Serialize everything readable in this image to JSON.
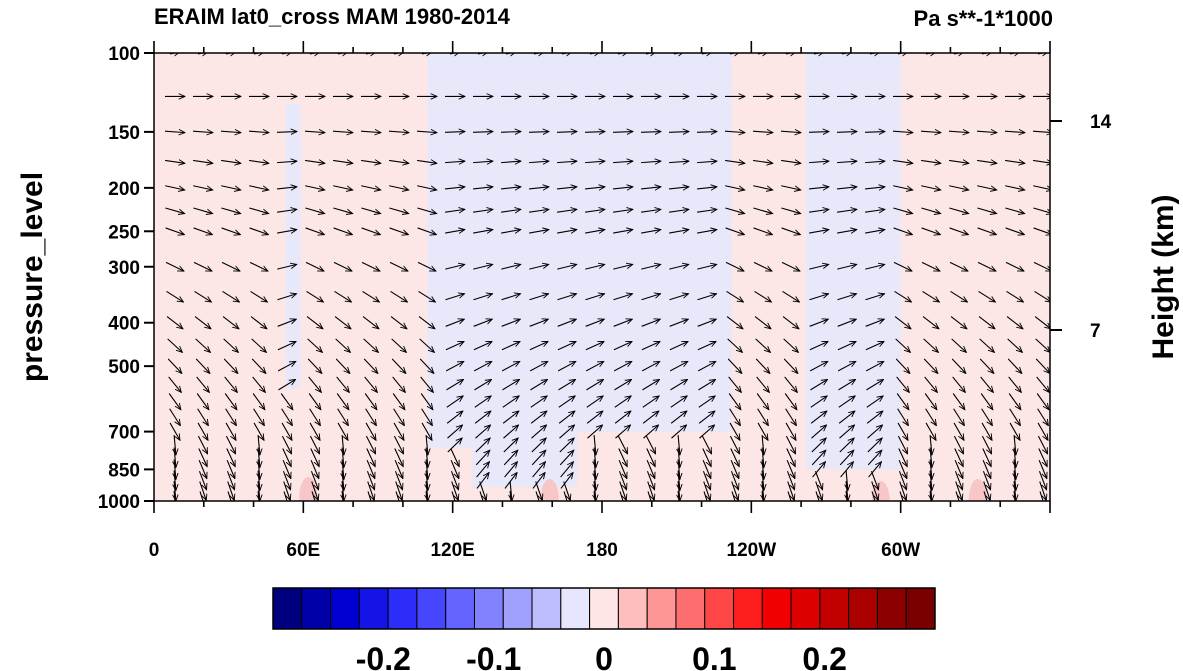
{
  "chart_data": {
    "type": "heatmap",
    "title": "ERAIM lat0_cross MAM 1980-2014",
    "units": "Pa s**-1*1000",
    "ylabel": "pressure_level",
    "ylabel_right": "Height (km)",
    "xlabel": "",
    "x_ticks": [
      {
        "lon": 0,
        "label": "0"
      },
      {
        "lon": 60,
        "label": "60E"
      },
      {
        "lon": 120,
        "label": "120E"
      },
      {
        "lon": 180,
        "label": "180"
      },
      {
        "lon": 240,
        "label": "120W"
      },
      {
        "lon": 300,
        "label": "60W"
      }
    ],
    "xlim": [
      0,
      360
    ],
    "y_ticks": [
      100,
      150,
      200,
      250,
      300,
      400,
      500,
      700,
      850,
      1000
    ],
    "ylim": [
      1000,
      100
    ],
    "y_scale": "log",
    "height_ticks": [
      {
        "km": 14,
        "label": "14"
      },
      {
        "km": 7,
        "label": "7"
      }
    ],
    "colorbar": {
      "colors": [
        "#00007f",
        "#0000a8",
        "#0000d0",
        "#1414e6",
        "#2d2dfa",
        "#4646ff",
        "#6464ff",
        "#8282ff",
        "#a0a0ff",
        "#bebeff",
        "#e6e6ff",
        "#ffe6e6",
        "#ffbebe",
        "#ff9696",
        "#ff6e6e",
        "#ff4646",
        "#ff1e1e",
        "#f00000",
        "#dc0000",
        "#c30000",
        "#aa0000",
        "#8c0000",
        "#780000"
      ],
      "tick_labels": [
        "-0.2",
        "-0.1",
        "0",
        "0.1",
        "0.2"
      ],
      "tick_values": [
        -0.2,
        -0.1,
        0,
        0.1,
        0.2
      ],
      "range": [
        -0.3,
        0.3
      ]
    },
    "field_levels": {
      "weak_negative": "#e8e8fb",
      "weak_positive": "#fde6e6",
      "moderate_positive": "#f7c6c6"
    },
    "negative_regions": [
      {
        "lon": [
          53,
          59
        ],
        "p_top": 130,
        "p_bot": 560
      },
      {
        "lon": [
          110,
          128
        ],
        "p_top": 100,
        "p_bot": 760
      },
      {
        "lon": [
          128,
          170
        ],
        "p_top": 100,
        "p_bot": 930
      },
      {
        "lon": [
          170,
          232
        ],
        "p_top": 100,
        "p_bot": 700
      },
      {
        "lon": [
          262,
          300
        ],
        "p_top": 100,
        "p_bot": 850
      }
    ],
    "positive_spots": [
      {
        "lon": 62,
        "p": 940
      },
      {
        "lon": 159,
        "p": 950
      },
      {
        "lon": 292,
        "p": 960
      },
      {
        "lon": 331,
        "p": 950
      }
    ],
    "vector_levels": [
      100,
      125,
      150,
      175,
      200,
      225,
      250,
      300,
      350,
      400,
      450,
      500,
      550,
      600,
      650,
      700,
      750,
      800,
      850,
      900,
      950,
      1000
    ]
  }
}
